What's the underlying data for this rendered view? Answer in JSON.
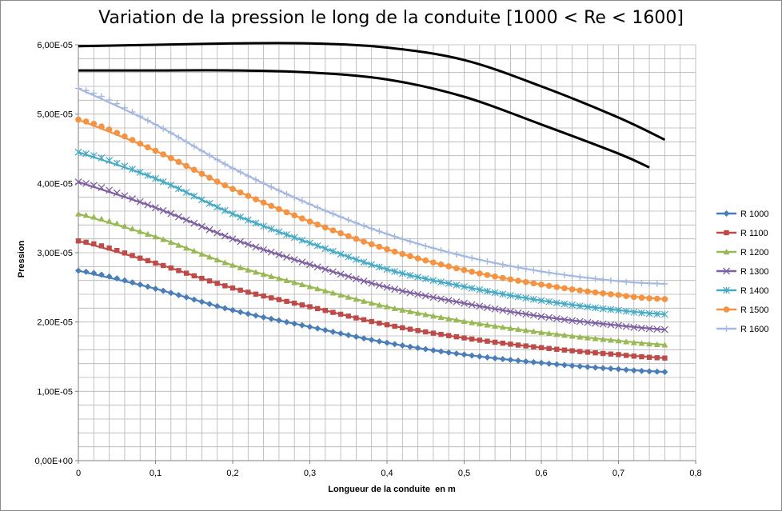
{
  "chart_data": {
    "type": "line",
    "title": "Variation de la pression le long de la conduite [1000 < Re < 1600]",
    "xlabel": "Longueur de la conduite  en m",
    "ylabel": "Pression",
    "xlim": [
      0,
      0.8
    ],
    "ylim": [
      0,
      6e-05
    ],
    "x_ticks": [
      "0",
      "0,1",
      "0,2",
      "0,3",
      "0,4",
      "0,5",
      "0,6",
      "0,7",
      "0,8"
    ],
    "y_ticks": [
      "0,00E+00",
      "1,00E-05",
      "2,00E-05",
      "3,00E-05",
      "4,00E-05",
      "5,00E-05",
      "6,00E-05"
    ],
    "grid": true,
    "legend_position": "right",
    "series": [
      {
        "name": "R 1000",
        "color": "#4a7ebb",
        "marker": "diamond",
        "points": [
          [
            0,
            2.74e-05
          ],
          [
            0.1,
            2.48e-05
          ],
          [
            0.2,
            2.17e-05
          ],
          [
            0.3,
            1.93e-05
          ],
          [
            0.4,
            1.7e-05
          ],
          [
            0.5,
            1.53e-05
          ],
          [
            0.6,
            1.41e-05
          ],
          [
            0.7,
            1.32e-05
          ],
          [
            0.76,
            1.28e-05
          ]
        ]
      },
      {
        "name": "R 1100",
        "color": "#be4b48",
        "marker": "square",
        "points": [
          [
            0,
            3.17e-05
          ],
          [
            0.1,
            2.85e-05
          ],
          [
            0.2,
            2.49e-05
          ],
          [
            0.3,
            2.22e-05
          ],
          [
            0.4,
            1.96e-05
          ],
          [
            0.5,
            1.77e-05
          ],
          [
            0.6,
            1.63e-05
          ],
          [
            0.7,
            1.53e-05
          ],
          [
            0.76,
            1.48e-05
          ]
        ]
      },
      {
        "name": "R 1200",
        "color": "#98b954",
        "marker": "triangle",
        "points": [
          [
            0,
            3.56e-05
          ],
          [
            0.1,
            3.23e-05
          ],
          [
            0.2,
            2.82e-05
          ],
          [
            0.3,
            2.51e-05
          ],
          [
            0.4,
            2.22e-05
          ],
          [
            0.5,
            2.01e-05
          ],
          [
            0.6,
            1.85e-05
          ],
          [
            0.7,
            1.73e-05
          ],
          [
            0.76,
            1.67e-05
          ]
        ]
      },
      {
        "name": "R 1300",
        "color": "#7d60a0",
        "marker": "cross",
        "points": [
          [
            0,
            4.02e-05
          ],
          [
            0.1,
            3.65e-05
          ],
          [
            0.2,
            3.2e-05
          ],
          [
            0.3,
            2.83e-05
          ],
          [
            0.4,
            2.5e-05
          ],
          [
            0.5,
            2.27e-05
          ],
          [
            0.6,
            2.08e-05
          ],
          [
            0.7,
            1.95e-05
          ],
          [
            0.76,
            1.89e-05
          ]
        ]
      },
      {
        "name": "R 1400",
        "color": "#46aac5",
        "marker": "star",
        "points": [
          [
            0,
            4.45e-05
          ],
          [
            0.1,
            4.07e-05
          ],
          [
            0.2,
            3.56e-05
          ],
          [
            0.3,
            3.14e-05
          ],
          [
            0.4,
            2.76e-05
          ],
          [
            0.5,
            2.51e-05
          ],
          [
            0.6,
            2.31e-05
          ],
          [
            0.7,
            2.17e-05
          ],
          [
            0.76,
            2.11e-05
          ]
        ]
      },
      {
        "name": "R 1500",
        "color": "#f69240",
        "marker": "circle",
        "points": [
          [
            0,
            4.92e-05
          ],
          [
            0.1,
            4.47e-05
          ],
          [
            0.2,
            3.92e-05
          ],
          [
            0.3,
            3.45e-05
          ],
          [
            0.4,
            3.05e-05
          ],
          [
            0.5,
            2.75e-05
          ],
          [
            0.6,
            2.54e-05
          ],
          [
            0.7,
            2.39e-05
          ],
          [
            0.76,
            2.33e-05
          ]
        ]
      },
      {
        "name": "R 1600",
        "color": "#a5b9e0",
        "marker": "plus",
        "points": [
          [
            0,
            5.37e-05
          ],
          [
            0.1,
            4.85e-05
          ],
          [
            0.2,
            4.22e-05
          ],
          [
            0.3,
            3.7e-05
          ],
          [
            0.4,
            3.27e-05
          ],
          [
            0.5,
            2.95e-05
          ],
          [
            0.6,
            2.73e-05
          ],
          [
            0.7,
            2.59e-05
          ],
          [
            0.76,
            2.55e-05
          ]
        ]
      },
      {
        "name": "",
        "color": "#000000",
        "marker": "none",
        "points": [
          [
            0,
            5.98e-05
          ],
          [
            0.1,
            6e-05
          ],
          [
            0.2,
            6.02e-05
          ],
          [
            0.3,
            6.02e-05
          ],
          [
            0.4,
            5.96e-05
          ],
          [
            0.5,
            5.78e-05
          ],
          [
            0.6,
            5.4e-05
          ],
          [
            0.7,
            4.95e-05
          ],
          [
            0.76,
            4.63e-05
          ]
        ]
      },
      {
        "name": "",
        "color": "#000000",
        "marker": "none",
        "points": [
          [
            0,
            5.63e-05
          ],
          [
            0.1,
            5.63e-05
          ],
          [
            0.2,
            5.63e-05
          ],
          [
            0.3,
            5.6e-05
          ],
          [
            0.4,
            5.5e-05
          ],
          [
            0.5,
            5.25e-05
          ],
          [
            0.6,
            4.85e-05
          ],
          [
            0.7,
            4.43e-05
          ],
          [
            0.74,
            4.23e-05
          ]
        ]
      }
    ]
  }
}
